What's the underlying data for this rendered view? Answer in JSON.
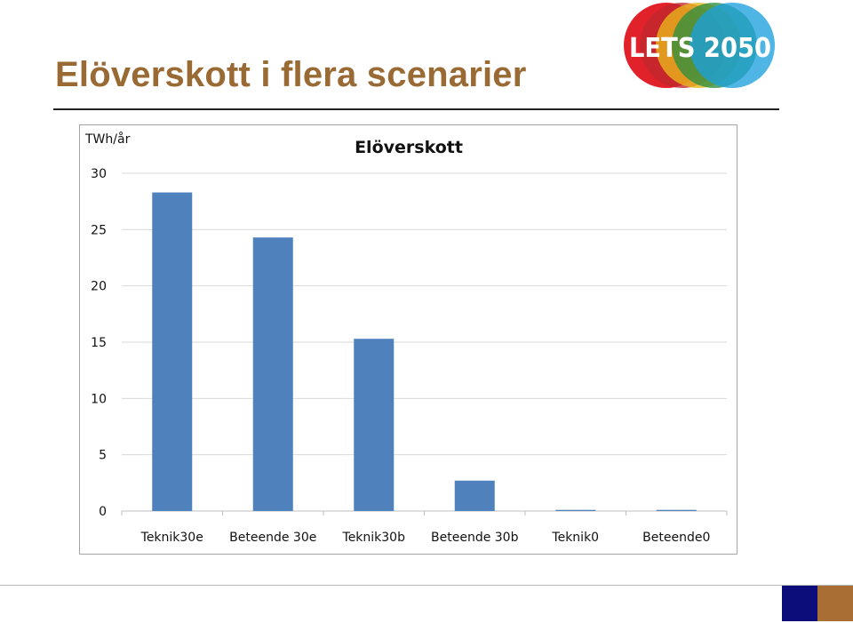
{
  "slide": {
    "title": "Elöverskott i flera scenarier"
  },
  "logo": {
    "text": "LETS 2050",
    "circle_colors": [
      "#e2222a",
      "#c0282e",
      "#e9b91b",
      "#2e8e3f",
      "#1ca0dc"
    ]
  },
  "footer": {
    "navy": "#0c0c7a",
    "brown": "#a86e34"
  },
  "chart_data": {
    "type": "bar",
    "title": "Elöverskott",
    "ylabel": "TWh/år",
    "xlabel": "",
    "categories": [
      "Teknik30e",
      "Beteende 30e",
      "Teknik30b",
      "Beteende 30b",
      "Teknik0",
      "Beteende0"
    ],
    "values": [
      28.3,
      24.3,
      15.3,
      2.7,
      0.1,
      0.1
    ],
    "ylim": [
      0,
      30
    ],
    "yticks": [
      0,
      5,
      10,
      15,
      20,
      25,
      30
    ],
    "grid": true,
    "legend": "none",
    "bar_color": "#4f81bd"
  }
}
